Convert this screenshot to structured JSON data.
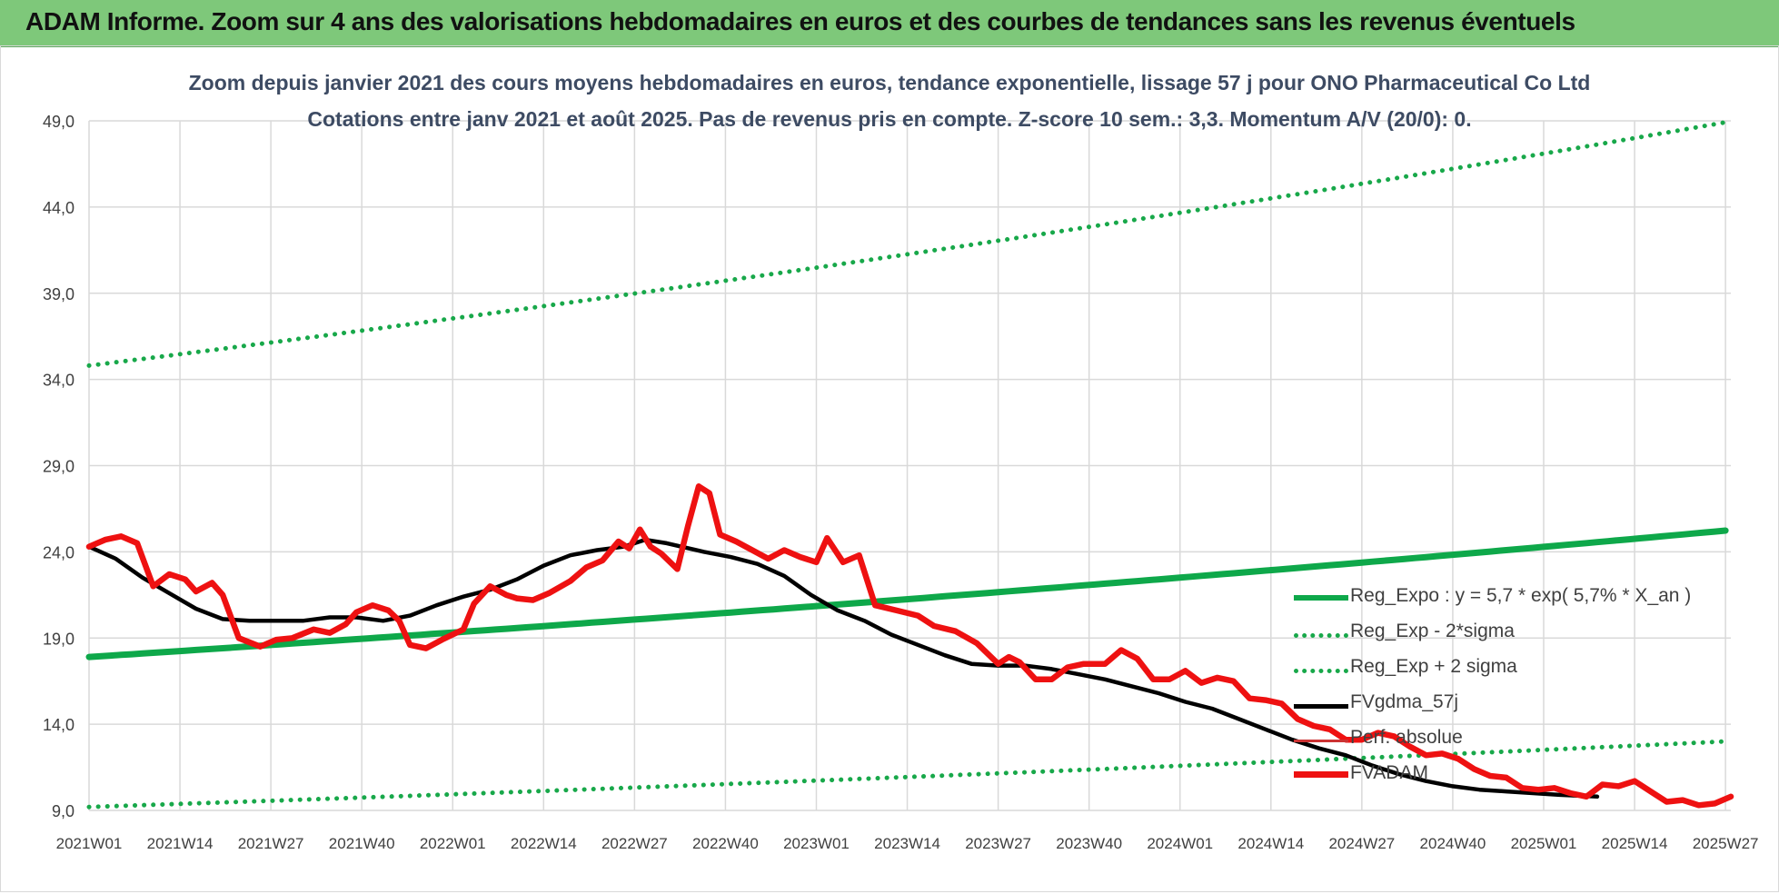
{
  "banner": {
    "title": "ADAM Informe. Zoom sur 4 ans des valorisations hebdomadaires en euros et des courbes de tendances sans les revenus éventuels"
  },
  "chart_data": {
    "type": "line",
    "title": "Zoom depuis janvier 2021 des cours moyens hebdomadaires en euros, tendance exponentielle, lissage 57 j pour ONO Pharmaceutical Co Ltd",
    "subtitle": "Cotations entre janv 2021 et août 2025. Pas de revenus pris en compte. Z-score 10 sem.: 3,3. Momentum A/V (20/0): 0.",
    "xlabel": "",
    "ylabel": "",
    "ylim": [
      9,
      49
    ],
    "y_ticks": [
      "9,0",
      "14,0",
      "19,0",
      "24,0",
      "29,0",
      "34,0",
      "39,0",
      "44,0",
      "49,0"
    ],
    "x_ticks": [
      "2021W01",
      "2021W14",
      "2021W27",
      "2021W40",
      "2022W01",
      "2022W14",
      "2022W27",
      "2022W40",
      "2023W01",
      "2023W14",
      "2023W27",
      "2023W40",
      "2024W01",
      "2024W14",
      "2024W27",
      "2024W40",
      "2025W01",
      "2025W14",
      "2025W27"
    ],
    "grid": true,
    "legend_position": "right",
    "colors": {
      "reg": "#0ea84a",
      "band": "#18a84a",
      "fvg": "#000000",
      "fvadam": "#ee1111",
      "perf": "#cc3333"
    },
    "series": [
      {
        "name": "Reg_Expo : y = 5,7 * exp( 5,7% *  X_an )",
        "style": "solid",
        "color_key": "reg",
        "points": [
          [
            0,
            17.9
          ],
          [
            235,
            23.3
          ]
        ]
      },
      {
        "name": "Reg_Exp - 2*sigma",
        "style": "dotted",
        "color_key": "band",
        "points": [
          [
            0,
            9.2
          ],
          [
            235,
            12.0
          ]
        ]
      },
      {
        "name": "Reg_Exp + 2 sigma",
        "style": "dotted",
        "color_key": "band",
        "points": [
          [
            0,
            34.8
          ],
          [
            235,
            45.2
          ]
        ]
      },
      {
        "name": "FVgdma_57j",
        "style": "solid",
        "color_key": "fvg",
        "points": [
          [
            0,
            24.3
          ],
          [
            5,
            23.6
          ],
          [
            10,
            22.5
          ],
          [
            15,
            21.6
          ],
          [
            20,
            20.7
          ],
          [
            25,
            20.1
          ],
          [
            30,
            20.0
          ],
          [
            40,
            20.0
          ],
          [
            45,
            20.2
          ],
          [
            50,
            20.2
          ],
          [
            55,
            20.0
          ],
          [
            60,
            20.3
          ],
          [
            65,
            20.9
          ],
          [
            70,
            21.4
          ],
          [
            75,
            21.8
          ],
          [
            80,
            22.4
          ],
          [
            85,
            23.2
          ],
          [
            90,
            23.8
          ],
          [
            95,
            24.1
          ],
          [
            100,
            24.3
          ],
          [
            104,
            24.7
          ],
          [
            108,
            24.5
          ],
          [
            115,
            24.0
          ],
          [
            120,
            23.7
          ],
          [
            125,
            23.3
          ],
          [
            130,
            22.6
          ],
          [
            135,
            21.5
          ],
          [
            140,
            20.6
          ],
          [
            145,
            20.0
          ],
          [
            150,
            19.2
          ],
          [
            155,
            18.6
          ],
          [
            160,
            18.0
          ],
          [
            165,
            17.5
          ],
          [
            170,
            17.4
          ],
          [
            175,
            17.4
          ],
          [
            180,
            17.2
          ],
          [
            185,
            16.9
          ],
          [
            190,
            16.6
          ],
          [
            195,
            16.2
          ],
          [
            200,
            15.8
          ],
          [
            205,
            15.3
          ],
          [
            210,
            14.9
          ],
          [
            215,
            14.3
          ],
          [
            220,
            13.7
          ],
          [
            225,
            13.1
          ],
          [
            230,
            12.6
          ],
          [
            235,
            12.2
          ],
          [
            240,
            11.6
          ],
          [
            245,
            11.1
          ],
          [
            250,
            10.7
          ],
          [
            255,
            10.4
          ],
          [
            260,
            10.2
          ],
          [
            265,
            10.1
          ],
          [
            270,
            10.0
          ],
          [
            275,
            9.9
          ],
          [
            282,
            9.8
          ]
        ]
      },
      {
        "name": "FVADAM",
        "style": "solid",
        "color_key": "fvadam",
        "points": [
          [
            0,
            24.3
          ],
          [
            3,
            24.7
          ],
          [
            6,
            24.9
          ],
          [
            9,
            24.5
          ],
          [
            12,
            22.0
          ],
          [
            15,
            22.7
          ],
          [
            18,
            22.4
          ],
          [
            20,
            21.7
          ],
          [
            23,
            22.2
          ],
          [
            25,
            21.5
          ],
          [
            28,
            19.0
          ],
          [
            32,
            18.5
          ],
          [
            35,
            18.9
          ],
          [
            38,
            19.0
          ],
          [
            42,
            19.5
          ],
          [
            45,
            19.3
          ],
          [
            48,
            19.8
          ],
          [
            50,
            20.5
          ],
          [
            53,
            20.9
          ],
          [
            56,
            20.6
          ],
          [
            58,
            20.0
          ],
          [
            60,
            18.6
          ],
          [
            63,
            18.4
          ],
          [
            66,
            18.9
          ],
          [
            70,
            19.5
          ],
          [
            72,
            21.0
          ],
          [
            75,
            22.0
          ],
          [
            78,
            21.5
          ],
          [
            80,
            21.3
          ],
          [
            83,
            21.2
          ],
          [
            86,
            21.6
          ],
          [
            90,
            22.3
          ],
          [
            93,
            23.1
          ],
          [
            96,
            23.5
          ],
          [
            99,
            24.6
          ],
          [
            101,
            24.2
          ],
          [
            103,
            25.3
          ],
          [
            105,
            24.3
          ],
          [
            107,
            23.9
          ],
          [
            110,
            23.0
          ],
          [
            112,
            25.5
          ],
          [
            114,
            27.8
          ],
          [
            116,
            27.4
          ],
          [
            118,
            25.0
          ],
          [
            121,
            24.6
          ],
          [
            124,
            24.1
          ],
          [
            127,
            23.6
          ],
          [
            130,
            24.1
          ],
          [
            133,
            23.7
          ],
          [
            136,
            23.4
          ],
          [
            138,
            24.8
          ],
          [
            141,
            23.4
          ],
          [
            144,
            23.8
          ],
          [
            147,
            20.9
          ],
          [
            151,
            20.6
          ],
          [
            155,
            20.3
          ],
          [
            158,
            19.7
          ],
          [
            162,
            19.4
          ],
          [
            166,
            18.7
          ],
          [
            170,
            17.5
          ],
          [
            172,
            17.9
          ],
          [
            174,
            17.6
          ],
          [
            177,
            16.6
          ],
          [
            180,
            16.6
          ],
          [
            183,
            17.3
          ],
          [
            186,
            17.5
          ],
          [
            190,
            17.5
          ],
          [
            193,
            18.3
          ],
          [
            196,
            17.8
          ],
          [
            199,
            16.6
          ],
          [
            202,
            16.6
          ],
          [
            205,
            17.1
          ],
          [
            208,
            16.4
          ],
          [
            211,
            16.7
          ],
          [
            214,
            16.5
          ],
          [
            217,
            15.5
          ],
          [
            220,
            15.4
          ],
          [
            223,
            15.2
          ],
          [
            226,
            14.3
          ],
          [
            229,
            13.9
          ],
          [
            232,
            13.7
          ],
          [
            235,
            13.1
          ],
          [
            238,
            13.1
          ],
          [
            241,
            13.5
          ],
          [
            244,
            13.3
          ],
          [
            247,
            12.7
          ],
          [
            250,
            12.2
          ],
          [
            253,
            12.3
          ],
          [
            256,
            12.0
          ],
          [
            259,
            11.4
          ],
          [
            262,
            11.0
          ],
          [
            265,
            10.9
          ],
          [
            268,
            10.3
          ],
          [
            271,
            10.2
          ],
          [
            274,
            10.3
          ],
          [
            277,
            10.0
          ],
          [
            280,
            9.8
          ],
          [
            283,
            10.5
          ],
          [
            286,
            10.4
          ],
          [
            289,
            10.7
          ],
          [
            292,
            10.1
          ],
          [
            295,
            9.5
          ],
          [
            298,
            9.6
          ],
          [
            301,
            9.3
          ],
          [
            304,
            9.4
          ],
          [
            307,
            9.8
          ]
        ]
      }
    ],
    "legend_extra": "Perf. absolue"
  }
}
